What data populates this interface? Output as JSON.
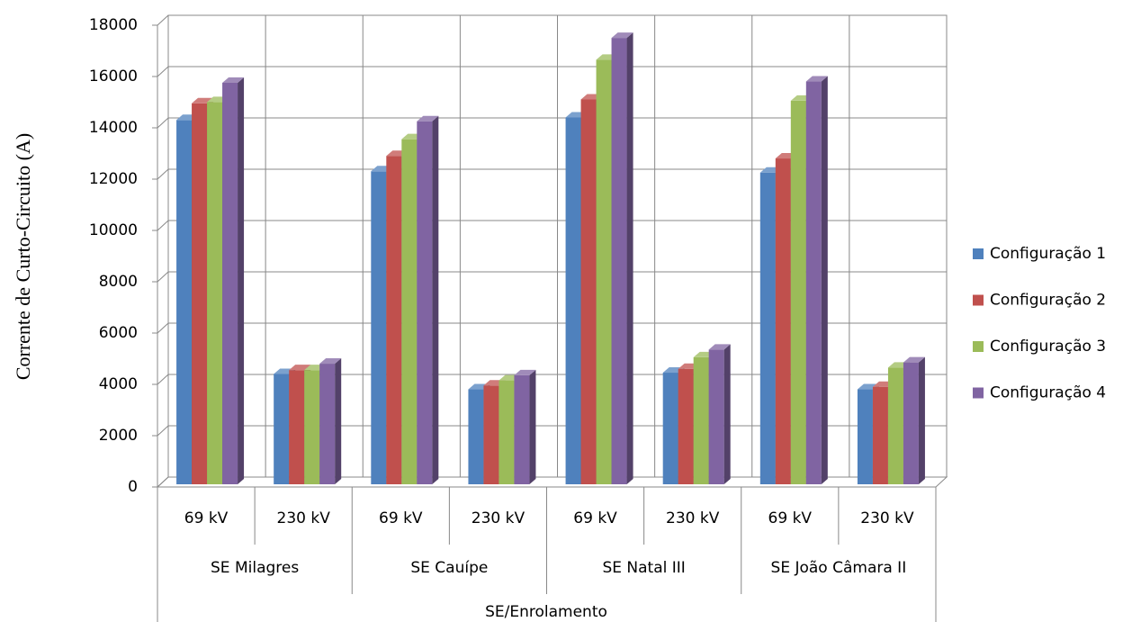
{
  "chart_data": {
    "type": "bar3d",
    "y_label": "Corrente de Curto-Circuito (A)",
    "x_label": "SE/Enrolamento",
    "categories": [
      "69 kV",
      "230 kV",
      "69 kV",
      "230 kV",
      "69 kV",
      "230 kV",
      "69 kV",
      "230 kV"
    ],
    "category_groups": [
      "SE Milagres",
      "SE Cauípe",
      "SE Natal III",
      "SE João Câmara II"
    ],
    "series": [
      {
        "name": "Configuração 1",
        "color": "#4f81bd",
        "values": [
          14200,
          4300,
          12200,
          3700,
          14300,
          4350,
          12150,
          3700
        ]
      },
      {
        "name": "Configuração 2",
        "color": "#c0504d",
        "values": [
          14850,
          4450,
          12800,
          3850,
          15000,
          4500,
          12700,
          3800
        ]
      },
      {
        "name": "Configuração 3",
        "color": "#9bbb59",
        "values": [
          14900,
          4450,
          13450,
          4050,
          16550,
          4950,
          14950,
          4550
        ]
      },
      {
        "name": "Configuração 4",
        "color": "#8064a2",
        "values": [
          15650,
          4700,
          14150,
          4250,
          17400,
          5250,
          15700,
          4750
        ]
      }
    ],
    "ylim": [
      0,
      18000
    ],
    "yticks": [
      0,
      2000,
      4000,
      6000,
      8000,
      10000,
      12000,
      14000,
      16000,
      18000
    ],
    "grid": true,
    "legend": "right"
  }
}
